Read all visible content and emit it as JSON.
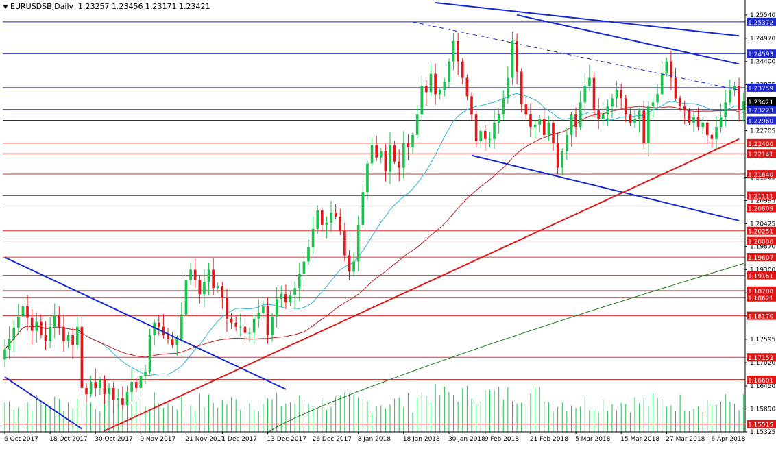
{
  "header": {
    "symbol_label": "EURUSDSB,Daily",
    "ohlc": "1.23257 1.23456 1.23171 1.23421"
  },
  "colors": {
    "bull": "#19c24a",
    "bear": "#e01818",
    "blue_line": "#1428d2",
    "red_trend": "#e01818",
    "ma_short": "#2ab4d8",
    "ma_mid": "#c81e1e",
    "ma_long": "#1e7a1e",
    "level_line": "#e03030",
    "level_line_blue": "#2020c8",
    "volume": "#19c24a"
  },
  "chart_data": {
    "type": "candlestick",
    "symbol": "EURUSDSB",
    "timeframe": "Daily",
    "ylim": [
      1.15325,
      1.2584
    ],
    "y_ticks": [
      "1.25540",
      "1.24970",
      "1.24400",
      "1.23835",
      "1.23265",
      "1.22705",
      "1.22135",
      "1.21565",
      "1.20995",
      "1.20425",
      "1.19870",
      "1.19300",
      "1.18730",
      "1.18165",
      "1.17595",
      "1.17020",
      "1.16450",
      "1.15890",
      "1.15325"
    ],
    "x_ticks": [
      {
        "i": 0,
        "label": "6 Oct 2017"
      },
      {
        "i": 10,
        "label": "18 Oct 2017"
      },
      {
        "i": 20,
        "label": "30 Oct 2017"
      },
      {
        "i": 30,
        "label": "9 Nov 2017"
      },
      {
        "i": 40,
        "label": "21 Nov 2017"
      },
      {
        "i": 48,
        "label": "1 Dec 2017"
      },
      {
        "i": 58,
        "label": "13 Dec 2017"
      },
      {
        "i": 68,
        "label": "26 Dec 2017"
      },
      {
        "i": 78,
        "label": "8 Jan 2018"
      },
      {
        "i": 88,
        "label": "18 Jan 2018"
      },
      {
        "i": 98,
        "label": "30 Jan 2018"
      },
      {
        "i": 106,
        "label": "9 Feb 2018"
      },
      {
        "i": 116,
        "label": "21 Feb 2018"
      },
      {
        "i": 126,
        "label": "5 Mar 2018"
      },
      {
        "i": 136,
        "label": "15 Mar 2018"
      },
      {
        "i": 146,
        "label": "27 Mar 2018"
      },
      {
        "i": 156,
        "label": "6 Apr 2018"
      }
    ],
    "levels": [
      {
        "value": 1.25372,
        "label": "1.25372",
        "style": "blue"
      },
      {
        "value": 1.24593,
        "label": "1.24593",
        "style": "blue"
      },
      {
        "value": 1.23759,
        "label": "1.23759",
        "style": "blue"
      },
      {
        "value": 1.23421,
        "label": "1.23421",
        "style": "current"
      },
      {
        "value": 1.23223,
        "label": "1.23223",
        "style": "blue"
      },
      {
        "value": 1.2296,
        "label": "1.22960",
        "style": "blue"
      },
      {
        "value": 1.224,
        "label": "1.22400",
        "style": "red"
      },
      {
        "value": 1.22141,
        "label": "1.22141",
        "style": "red"
      },
      {
        "value": 1.2164,
        "label": "1.21640",
        "style": "red"
      },
      {
        "value": 1.21111,
        "label": "1.21111",
        "style": "red"
      },
      {
        "value": 1.20809,
        "label": "1.20809",
        "style": "red"
      },
      {
        "value": 1.20251,
        "label": "1.20251",
        "style": "red"
      },
      {
        "value": 1.2,
        "label": "1.20000",
        "style": "red"
      },
      {
        "value": 1.19607,
        "label": "1.19607",
        "style": "red"
      },
      {
        "value": 1.19161,
        "label": "1.19161",
        "style": "red"
      },
      {
        "value": 1.18788,
        "label": "1.18788",
        "style": "red"
      },
      {
        "value": 1.18621,
        "label": "1.18621",
        "style": "red"
      },
      {
        "value": 1.1817,
        "label": "1.18170",
        "style": "red"
      },
      {
        "value": 1.17152,
        "label": "1.17152",
        "style": "red"
      },
      {
        "value": 1.16601,
        "label": "1.16601",
        "style": "red_bold"
      },
      {
        "value": 1.15515,
        "label": "1.15515",
        "style": "red"
      }
    ],
    "closes": [
      1.1735,
      1.176,
      1.1788,
      1.1815,
      1.184,
      1.1812,
      1.178,
      1.1802,
      1.177,
      1.1755,
      1.179,
      1.182,
      1.179,
      1.1755,
      1.177,
      1.1745,
      1.179,
      1.164,
      1.1625,
      1.1655,
      1.164,
      1.166,
      1.1625,
      1.164,
      1.161,
      1.1615,
      1.1598,
      1.163,
      1.1655,
      1.164,
      1.167,
      1.168,
      1.177,
      1.18,
      1.179,
      1.177,
      1.176,
      1.1745,
      1.176,
      1.182,
      1.1905,
      1.193,
      1.1905,
      1.187,
      1.19,
      1.193,
      1.1885,
      1.189,
      1.186,
      1.181,
      1.18,
      1.179,
      1.179,
      1.1775,
      1.1775,
      1.181,
      1.1825,
      1.184,
      1.177,
      1.1815,
      1.1858,
      1.187,
      1.185,
      1.1868,
      1.1885,
      1.192,
      1.195,
      1.1985,
      1.203,
      1.2075,
      1.204,
      1.2045,
      1.207,
      1.206,
      1.2025,
      1.1965,
      1.1925,
      1.195,
      1.204,
      1.212,
      1.219,
      1.2235,
      1.2205,
      1.222,
      1.217,
      1.2235,
      1.2195,
      1.218,
      1.224,
      1.223,
      1.226,
      1.231,
      1.238,
      1.2365,
      1.241,
      1.236,
      1.237,
      1.239,
      1.244,
      1.249,
      1.244,
      1.24,
      1.2355,
      1.231,
      1.2245,
      1.227,
      1.225,
      1.225,
      1.229,
      1.231,
      1.235,
      1.24,
      1.249,
      1.2415,
      1.2335,
      1.231,
      1.228,
      1.2285,
      1.23,
      1.226,
      1.229,
      1.224,
      1.218,
      1.222,
      1.226,
      1.231,
      1.228,
      1.234,
      1.238,
      1.24,
      1.232,
      1.23,
      1.231,
      1.233,
      1.235,
      1.237,
      1.235,
      1.231,
      1.229,
      1.23,
      1.232,
      1.224,
      1.233,
      1.234,
      1.236,
      1.241,
      1.244,
      1.24,
      1.235,
      1.233,
      1.232,
      1.229,
      1.2305,
      1.228,
      1.229,
      1.226,
      1.225,
      1.228,
      1.2305,
      1.234,
      1.237,
      1.238,
      1.232,
      1.2342
    ],
    "trend_lines": [
      {
        "name": "upper-resistance",
        "color": "blue",
        "from": [
          95,
          1.2584
        ],
        "to": [
          162,
          1.2503
        ],
        "dashed": false
      },
      {
        "name": "upper-resistance-2",
        "color": "blue",
        "from": [
          113,
          1.2554
        ],
        "to": [
          162,
          1.2434
        ],
        "dashed": false
      },
      {
        "name": "dashed-resistance",
        "color": "blue",
        "from": [
          90,
          1.2537
        ],
        "to": [
          162,
          1.237
        ],
        "dashed": true
      },
      {
        "name": "channel-support",
        "color": "blue",
        "from": [
          103,
          1.221
        ],
        "to": [
          162,
          1.205
        ],
        "dashed": false
      },
      {
        "name": "early-downtrend",
        "color": "blue",
        "from": [
          0,
          1.196
        ],
        "to": [
          62,
          1.1637
        ],
        "dashed": false
      },
      {
        "name": "early-downtrend-2",
        "color": "blue",
        "from": [
          0,
          1.1667
        ],
        "to": [
          17,
          1.154
        ],
        "dashed": false
      },
      {
        "name": "main-uptrend",
        "color": "red",
        "from": [
          22,
          1.1535
        ],
        "to": [
          162,
          1.225
        ],
        "dashed": false
      }
    ]
  }
}
